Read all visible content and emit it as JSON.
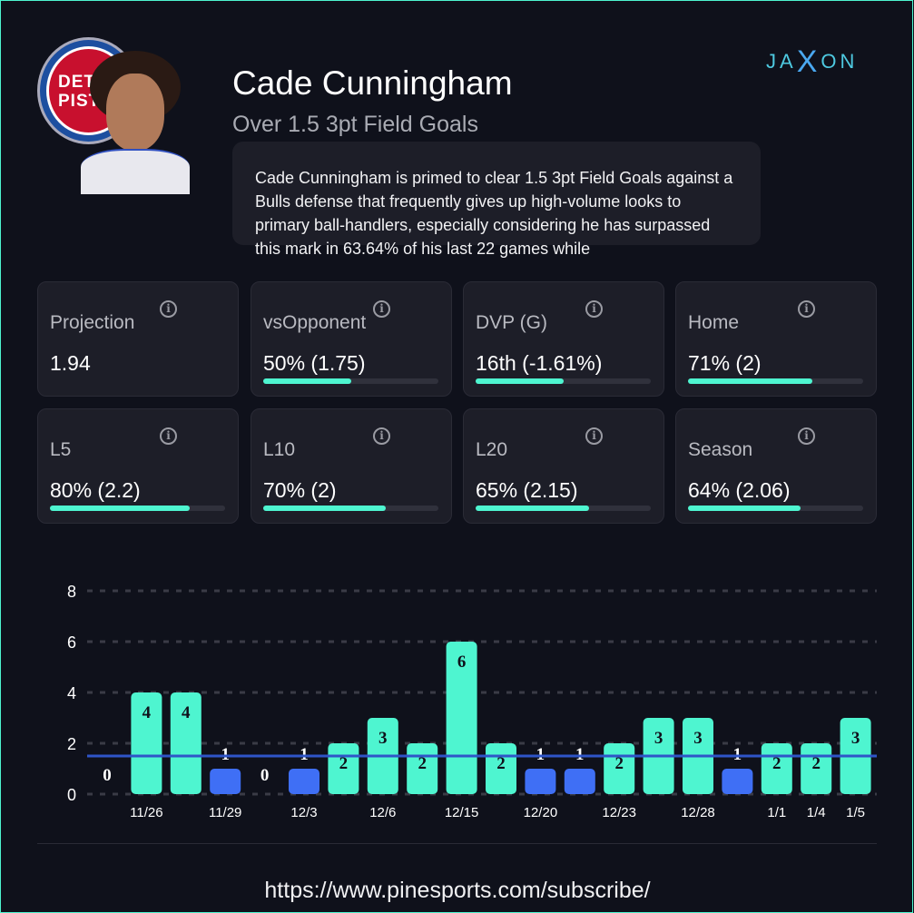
{
  "player": {
    "name": "Cade Cunningham",
    "prop": "Over 1.5 3pt Field Goals",
    "team_logo_text": "DETROIT PISTONS",
    "description": "Cade Cunningham is primed to clear 1.5 3pt Field Goals against a Bulls defense that frequently gives up high-volume looks to primary ball-handlers, especially considering he has surpassed this mark in 63.64% of his last 22 games while"
  },
  "brand": {
    "left": "JA",
    "mid": "X",
    "right": "ON"
  },
  "stats": [
    {
      "label": "Projection",
      "value": "1.94",
      "pct": null
    },
    {
      "label": "vsOpponent",
      "value": "50% (1.75)",
      "pct": 50
    },
    {
      "label": "DVP (G)",
      "value": "16th (-1.61%)",
      "pct": 50
    },
    {
      "label": "Home",
      "value": "71% (2)",
      "pct": 71
    },
    {
      "label": "L5",
      "value": "80% (2.2)",
      "pct": 80
    },
    {
      "label": "L10",
      "value": "70% (2)",
      "pct": 70
    },
    {
      "label": "L20",
      "value": "65% (2.15)",
      "pct": 65
    },
    {
      "label": "Season",
      "value": "64% (2.06)",
      "pct": 64
    }
  ],
  "chart_data": {
    "type": "bar",
    "categories": [
      "",
      "11/26",
      "",
      "11/29",
      "",
      "12/3",
      "",
      "12/6",
      "",
      "12/15",
      "",
      "12/20",
      "",
      "12/23",
      "",
      "12/28",
      "",
      "1/1",
      "1/4",
      "1/5"
    ],
    "values": [
      0,
      4,
      4,
      1,
      0,
      1,
      2,
      3,
      2,
      6,
      2,
      1,
      1,
      2,
      3,
      3,
      1,
      2,
      2,
      3
    ],
    "line": 1.5,
    "ylim": [
      0,
      8
    ],
    "yticks": [
      "0",
      "2",
      "4",
      "6",
      "8"
    ],
    "colors": {
      "over": "#4ef5d0",
      "under": "#3f6ff5",
      "line": "#2f55c8"
    }
  },
  "footer": {
    "url": "https://www.pinesports.com/subscribe/"
  }
}
